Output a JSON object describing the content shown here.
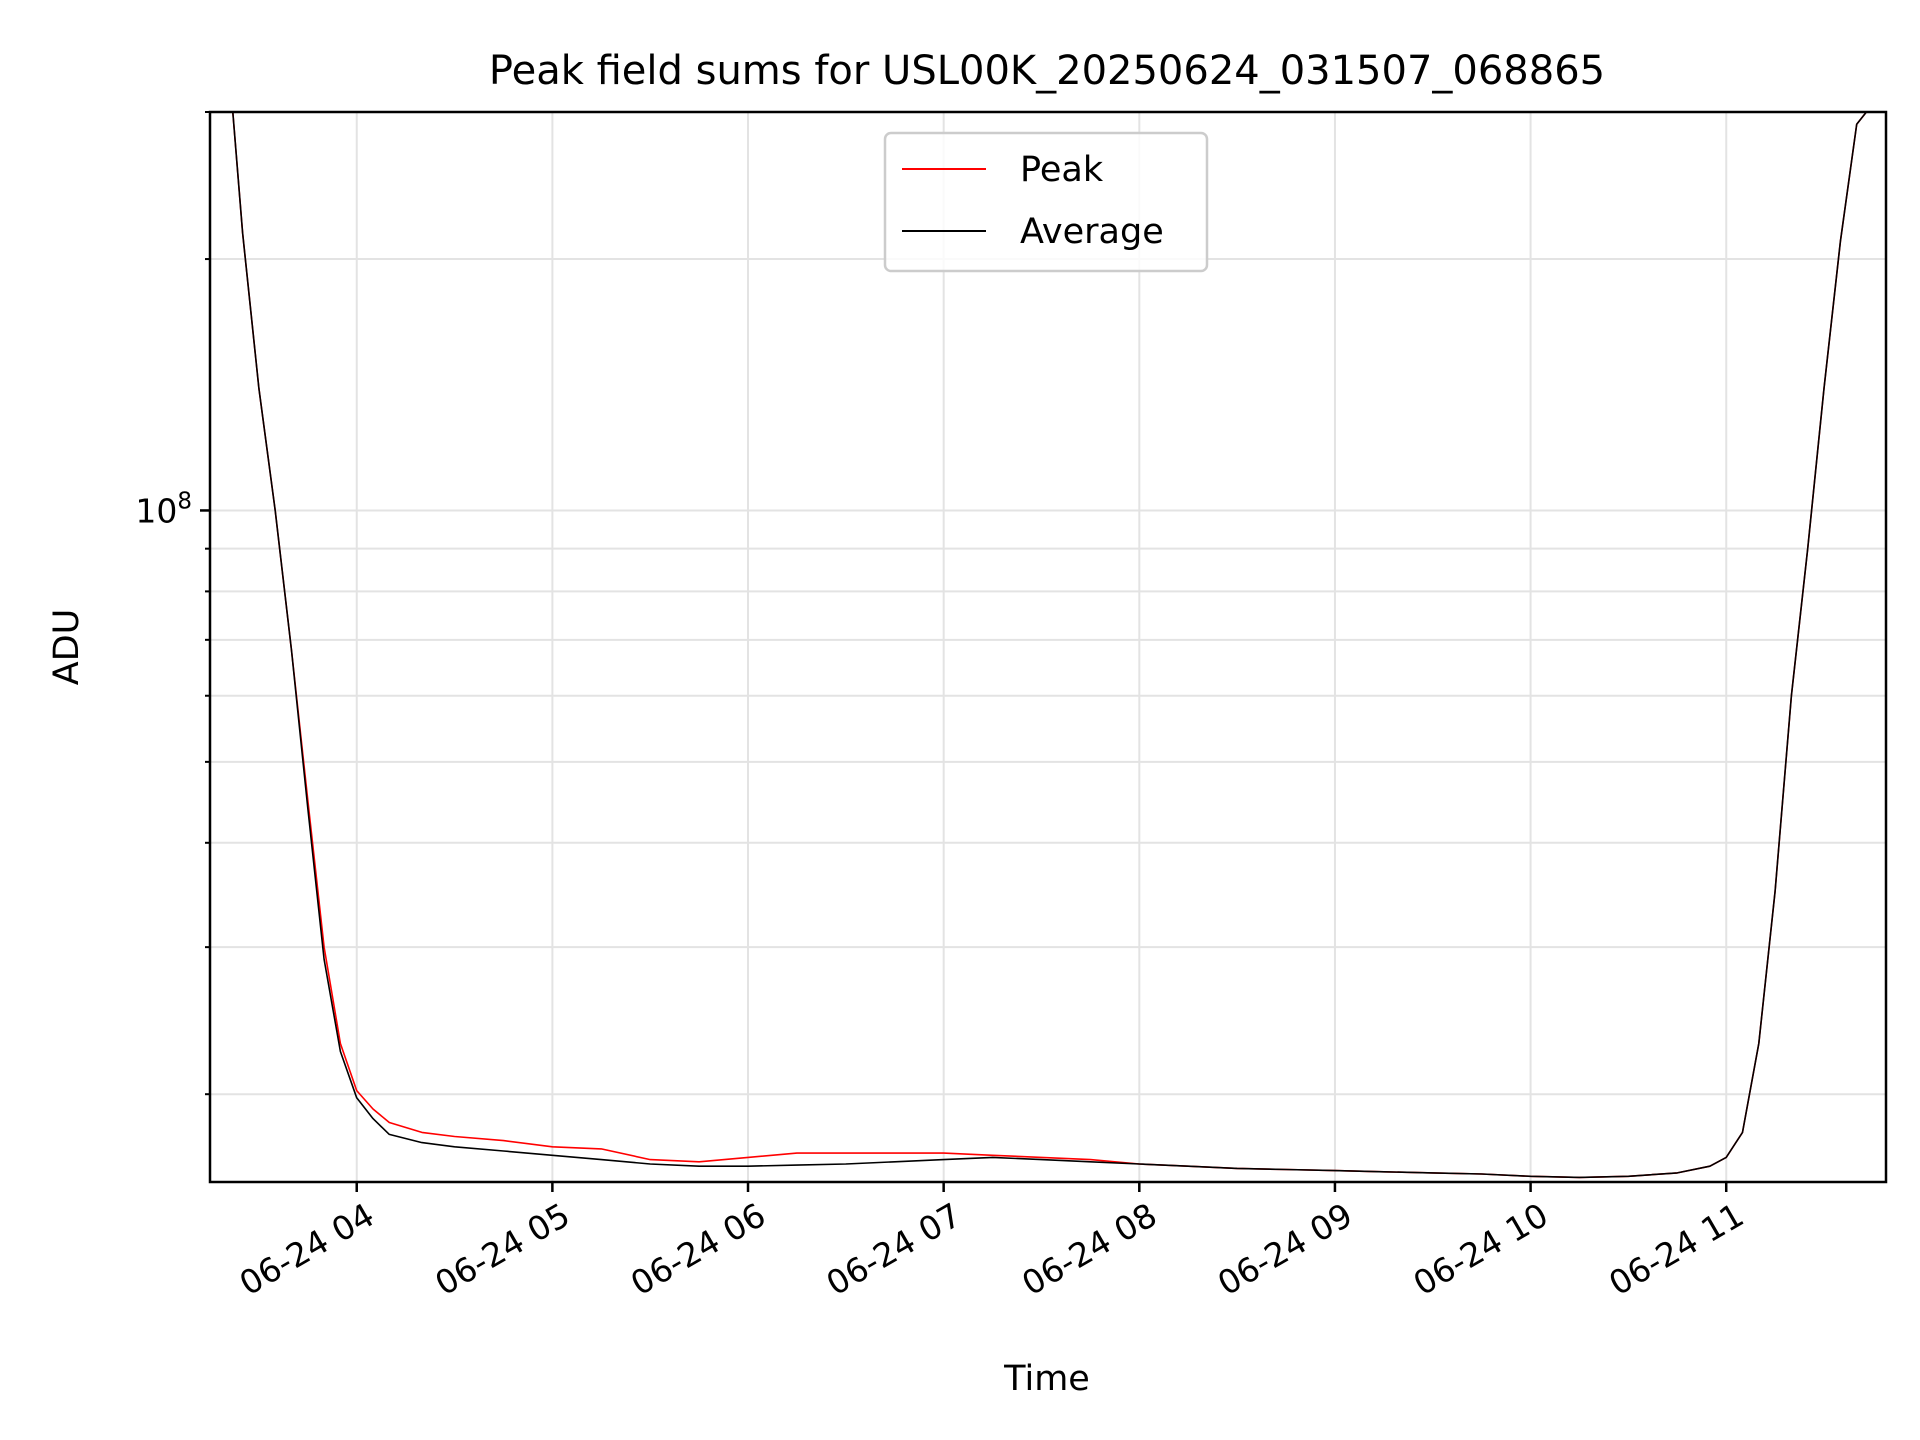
{
  "chart_data": {
    "type": "line",
    "title": "Peak field sums for USL00K_20250624_031507_068865",
    "xlabel": "Time",
    "ylabel": "ADU",
    "x_tick_labels": [
      "06-24 04",
      "06-24 05",
      "06-24 06",
      "06-24 07",
      "06-24 08",
      "06-24 09",
      "06-24 10",
      "06-24 11"
    ],
    "y_tick_label_base": "10",
    "y_tick_label_exp": "8",
    "y_scale": "log",
    "xlim": [
      "2025-06-24 03:15",
      "2025-06-24 11:49"
    ],
    "ylim": [
      15700000,
      300000000
    ],
    "grid": true,
    "legend": {
      "placement": "upper center",
      "entries": [
        "Peak",
        "Average"
      ]
    },
    "series": [
      {
        "name": "Peak",
        "color": "#ff0000",
        "x": [
          "03:15",
          "03:22",
          "03:25",
          "03:30",
          "03:35",
          "03:40",
          "03:45",
          "03:50",
          "03:55",
          "04:00",
          "04:05",
          "04:10",
          "04:20",
          "04:30",
          "04:45",
          "05:00",
          "05:15",
          "05:30",
          "05:45",
          "06:00",
          "06:15",
          "06:30",
          "06:45",
          "07:00",
          "07:15",
          "07:30",
          "07:45",
          "08:00",
          "08:15",
          "08:30",
          "08:45",
          "09:00",
          "09:15",
          "09:30",
          "09:45",
          "10:00",
          "10:15",
          "10:30",
          "10:45",
          "10:55",
          "11:00",
          "11:05",
          "11:10",
          "11:15",
          "11:20",
          "11:25",
          "11:30",
          "11:35",
          "11:40",
          "11:43"
        ],
        "values": [
          300000000,
          300000000,
          215000000,
          140000000,
          100000000,
          68000000,
          45000000,
          30000000,
          23000000,
          20200000,
          19200000,
          18500000,
          18000000,
          17800000,
          17600000,
          17300000,
          17200000,
          16700000,
          16600000,
          16800000,
          17000000,
          17000000,
          17000000,
          17000000,
          16900000,
          16800000,
          16700000,
          16500000,
          16400000,
          16300000,
          16250000,
          16200000,
          16150000,
          16100000,
          16050000,
          15950000,
          15900000,
          15950000,
          16100000,
          16400000,
          16800000,
          18000000,
          23000000,
          35000000,
          60000000,
          90000000,
          140000000,
          210000000,
          290000000,
          300000000
        ]
      },
      {
        "name": "Average",
        "color": "#000000",
        "x": [
          "03:15",
          "03:22",
          "03:25",
          "03:30",
          "03:35",
          "03:40",
          "03:45",
          "03:50",
          "03:55",
          "04:00",
          "04:05",
          "04:10",
          "04:20",
          "04:30",
          "04:45",
          "05:00",
          "05:15",
          "05:30",
          "05:45",
          "06:00",
          "06:15",
          "06:30",
          "06:45",
          "07:00",
          "07:15",
          "07:30",
          "07:45",
          "08:00",
          "08:15",
          "08:30",
          "08:45",
          "09:00",
          "09:15",
          "09:30",
          "09:45",
          "10:00",
          "10:15",
          "10:30",
          "10:45",
          "10:55",
          "11:00",
          "11:05",
          "11:10",
          "11:15",
          "11:20",
          "11:25",
          "11:30",
          "11:35",
          "11:40",
          "11:43"
        ],
        "values": [
          300000000,
          300000000,
          215000000,
          140000000,
          100000000,
          68000000,
          44000000,
          29000000,
          22500000,
          19800000,
          18700000,
          17900000,
          17500000,
          17300000,
          17100000,
          16900000,
          16700000,
          16500000,
          16400000,
          16400000,
          16450000,
          16500000,
          16600000,
          16700000,
          16800000,
          16700000,
          16600000,
          16500000,
          16400000,
          16300000,
          16250000,
          16200000,
          16150000,
          16100000,
          16050000,
          15950000,
          15900000,
          15950000,
          16100000,
          16400000,
          16800000,
          18000000,
          23000000,
          35000000,
          60000000,
          90000000,
          140000000,
          210000000,
          290000000,
          300000000
        ]
      }
    ]
  }
}
